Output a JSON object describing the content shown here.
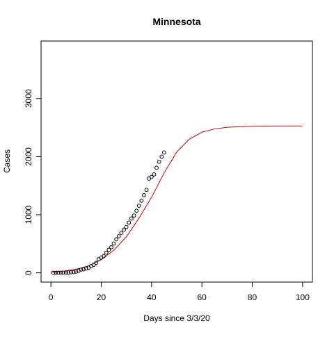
{
  "chart_data": {
    "type": "scatter",
    "title": "Minnesota",
    "xlabel": "Days since 3/3/20",
    "ylabel": "Cases",
    "xlim": [
      -3.9,
      103.9
    ],
    "ylim": [
      -160,
      3990
    ],
    "x_ticks": [
      0,
      20,
      40,
      60,
      80,
      100
    ],
    "y_ticks": [
      0,
      1000,
      2000,
      3000
    ],
    "grid": false,
    "legend": "none",
    "series": [
      {
        "kind": "points",
        "marker": "open-circle",
        "color": "#000000",
        "x": [
          1,
          2,
          3,
          4,
          5,
          6,
          7,
          8,
          9,
          10,
          11,
          12,
          13,
          14,
          15,
          16,
          17,
          18,
          19,
          20,
          21,
          22,
          23,
          24,
          25,
          26,
          27,
          28,
          29,
          30,
          31,
          32,
          33,
          34,
          35,
          36,
          37,
          38,
          39,
          40,
          41,
          42,
          43,
          44,
          45
        ],
        "y": [
          1,
          1,
          2,
          2,
          3,
          3,
          5,
          9,
          14,
          21,
          35,
          54,
          60,
          77,
          89,
          115,
          137,
          170,
          235,
          262,
          287,
          346,
          396,
          441,
          503,
          576,
          629,
          689,
          742,
          789,
          865,
          935,
          986,
          1069,
          1154,
          1242,
          1336,
          1427,
          1621,
          1650,
          1695,
          1809,
          1912,
          2000,
          2071
        ]
      },
      {
        "kind": "fitted-curve",
        "color": "#cc0000",
        "x": [
          0,
          5,
          10,
          15,
          20,
          25,
          30,
          35,
          40,
          45,
          50,
          55,
          60,
          65,
          70,
          75,
          80,
          85,
          90,
          95,
          100
        ],
        "y": [
          15,
          30,
          60,
          120,
          225,
          390,
          620,
          940,
          1300,
          1720,
          2080,
          2300,
          2420,
          2475,
          2505,
          2515,
          2522,
          2525,
          2526,
          2527,
          2528
        ]
      }
    ]
  }
}
